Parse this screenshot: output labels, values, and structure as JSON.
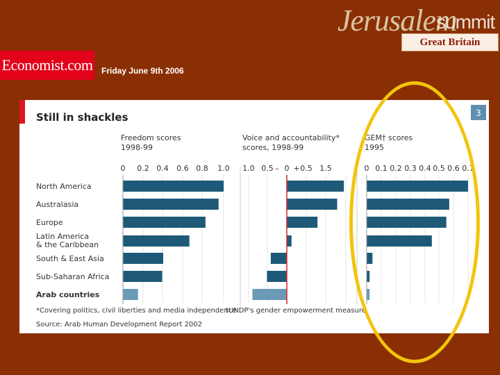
{
  "header": {
    "logo_script": "Jerusalem",
    "logo_summit": "summit",
    "badge": "Great Britain",
    "publisher": "Economist.com",
    "date": "Friday June 9th 2006"
  },
  "colors": {
    "background": "#8a2f04",
    "bar": "#1e5a78",
    "arab_bar": "#6a9ab5",
    "zero_line": "#d8242b",
    "highlight": "#f2c40c"
  },
  "chart_data": {
    "type": "bar",
    "title": "Still in shackles",
    "chart_number": "3",
    "categories": [
      "North America",
      "Australasia",
      "Europe",
      "Latin America & the Caribbean",
      "South & East Asia",
      "Sub-Saharan Africa",
      "Arab countries"
    ],
    "category_lines": [
      [
        "North America"
      ],
      [
        "Australasia"
      ],
      [
        "Europe"
      ],
      [
        "Latin America",
        "& the Caribbean"
      ],
      [
        "South & East Asia"
      ],
      [
        "Sub-Saharan Africa"
      ],
      [
        "Arab countries"
      ]
    ],
    "panels": [
      {
        "id": "freedom",
        "title": [
          "Freedom scores",
          "1998-99"
        ],
        "ticks": [
          "0",
          "0.2",
          "0.4",
          "0.6",
          "0.8",
          "1.0"
        ],
        "range": [
          0,
          1.0
        ],
        "values": [
          1.0,
          0.95,
          0.82,
          0.66,
          0.4,
          0.39,
          0.15
        ]
      },
      {
        "id": "voice",
        "title": [
          "Voice and accountability*",
          "scores, 1998-99"
        ],
        "ticks": [
          "1.0",
          "0.5",
          "0",
          "0.5",
          "1.5"
        ],
        "sign_minus": "–",
        "sign_plus": "+",
        "range": [
          -1.0,
          1.5
        ],
        "values": [
          1.45,
          1.28,
          0.78,
          0.12,
          -0.42,
          -0.52,
          -0.9
        ]
      },
      {
        "id": "gem",
        "title": [
          "GEM† scores",
          "1995"
        ],
        "ticks": [
          "0",
          "0.1",
          "0.2",
          "0.3",
          "0.4",
          "0.5",
          "0.6",
          "0.7"
        ],
        "range": [
          0,
          0.7
        ],
        "values": [
          0.7,
          0.57,
          0.55,
          0.45,
          0.04,
          0.02,
          0.02
        ]
      }
    ],
    "footnotes": [
      "*Covering politics, civil liberties and media independence",
      "†UNDP's gender empowerment measure"
    ],
    "source": "Source: Arab Human Development Report 2002"
  }
}
